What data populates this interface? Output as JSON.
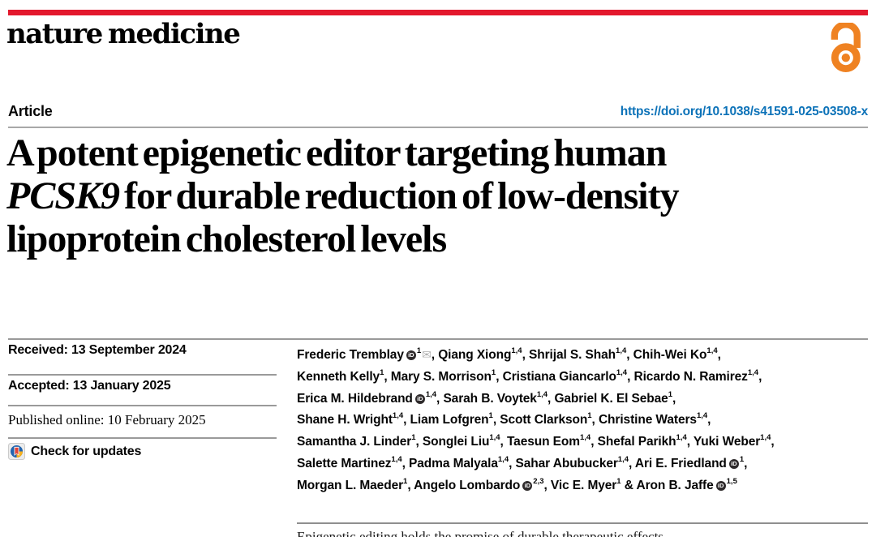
{
  "masthead": {
    "journal": "nature medicine",
    "accent_red": "#e3182d",
    "open_access_color": "#ef8222"
  },
  "article_header": {
    "type_label": "Article",
    "doi": "https://doi.org/10.1038/s41591-025-03508-x",
    "doi_color": "#0c72b8"
  },
  "title": {
    "lines": [
      [
        {
          "t": "A potent epigenetic editor targeting human"
        }
      ],
      [
        {
          "t": "PCSK9",
          "i": true
        },
        {
          "t": " for durable reduction of low-density"
        }
      ],
      [
        {
          "t": "lipoprotein cholesterol levels"
        }
      ]
    ]
  },
  "dates": {
    "received": "Received: 13 September 2024",
    "accepted": "Accepted: 13 January 2025",
    "published": "Published online: 10 February 2025",
    "check_updates_label": "Check for updates"
  },
  "authors": {
    "lines": [
      [
        {
          "t": "Frederic Tremblay"
        },
        {
          "icon": "orcid"
        },
        {
          "sup": "1"
        },
        {
          "icon": "envelope"
        },
        {
          "t": ", Qiang Xiong"
        },
        {
          "sup": "1,4"
        },
        {
          "t": ", Shrijal S. Shah"
        },
        {
          "sup": "1,4"
        },
        {
          "t": ", Chih-Wei Ko"
        },
        {
          "sup": "1,4"
        },
        {
          "t": ","
        }
      ],
      [
        {
          "t": "Kenneth Kelly"
        },
        {
          "sup": "1"
        },
        {
          "t": ", Mary S. Morrison"
        },
        {
          "sup": "1"
        },
        {
          "t": ", Cristiana Giancarlo"
        },
        {
          "sup": "1,4"
        },
        {
          "t": ", Ricardo N. Ramirez"
        },
        {
          "sup": "1,4"
        },
        {
          "t": ","
        }
      ],
      [
        {
          "t": "Erica M. Hildebrand"
        },
        {
          "icon": "orcid"
        },
        {
          "sup": "1,4"
        },
        {
          "t": ", Sarah B. Voytek"
        },
        {
          "sup": "1,4"
        },
        {
          "t": ", Gabriel K. El Sebae"
        },
        {
          "sup": "1"
        },
        {
          "t": ","
        }
      ],
      [
        {
          "t": "Shane H. Wright"
        },
        {
          "sup": "1,4"
        },
        {
          "t": ", Liam Lofgren"
        },
        {
          "sup": "1"
        },
        {
          "t": ", Scott Clarkson"
        },
        {
          "sup": "1"
        },
        {
          "t": ", Christine Waters"
        },
        {
          "sup": "1,4"
        },
        {
          "t": ","
        }
      ],
      [
        {
          "t": "Samantha J. Linder"
        },
        {
          "sup": "1"
        },
        {
          "t": ", Songlei Liu"
        },
        {
          "sup": "1,4"
        },
        {
          "t": ", Taesun Eom"
        },
        {
          "sup": "1,4"
        },
        {
          "t": ", Shefal Parikh"
        },
        {
          "sup": "1,4"
        },
        {
          "t": ", Yuki Weber"
        },
        {
          "sup": "1,4"
        },
        {
          "t": ","
        }
      ],
      [
        {
          "t": "Salette Martinez"
        },
        {
          "sup": "1,4"
        },
        {
          "t": ", Padma Malyala"
        },
        {
          "sup": "1,4"
        },
        {
          "t": ", Sahar Abubucker"
        },
        {
          "sup": "1,4"
        },
        {
          "t": ", Ari E. Friedland"
        },
        {
          "icon": "orcid"
        },
        {
          "sup": "1"
        },
        {
          "t": ","
        }
      ],
      [
        {
          "t": "Morgan L. Maeder"
        },
        {
          "sup": "1"
        },
        {
          "t": ", Angelo Lombardo"
        },
        {
          "icon": "orcid"
        },
        {
          "sup": "2,3"
        },
        {
          "t": ", Vic E. Myer"
        },
        {
          "sup": "1"
        },
        {
          "t": " & Aron B. Jaffe"
        },
        {
          "icon": "orcid"
        },
        {
          "sup": "1,5"
        }
      ]
    ]
  },
  "abstract": {
    "teaser": "Epigenetic editing holds the promise of durable therapeutic effects"
  }
}
